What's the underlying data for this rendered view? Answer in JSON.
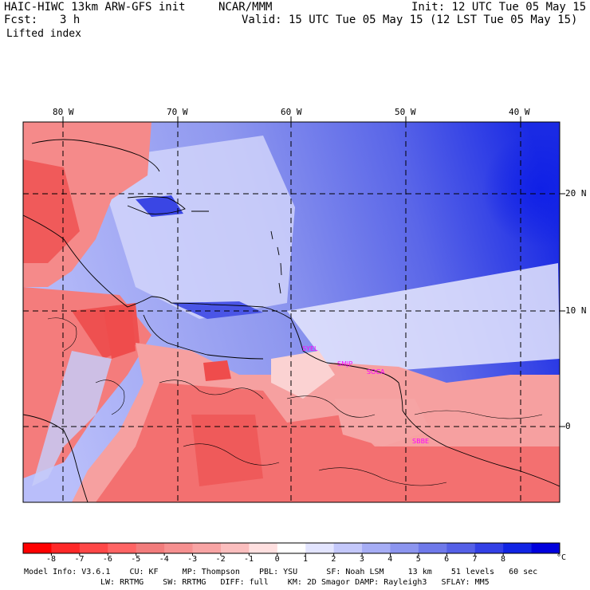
{
  "header": {
    "model": "HAIC-HIWC 13km ARW-GFS init",
    "center": "NCAR/MMM",
    "init": "Init: 12 UTC Tue 05 May 15",
    "fcst_label": "Fcst:",
    "fcst_value": "3 h",
    "valid": "Valid: 15 UTC Tue 05 May 15 (12 LST Tue 05 May 15)",
    "field": "Lifted index"
  },
  "map": {
    "lon_labels": [
      "80 W",
      "70 W",
      "60 W",
      "50 W",
      "40 W"
    ],
    "lat_labels": [
      "20 N",
      "10 N",
      "0"
    ],
    "stations": [
      "SYEL",
      "SMJP",
      "SOCA",
      "SBBE"
    ],
    "colors": {
      "strong_negative": "#ff2020",
      "negative": "#f37b7b",
      "neutral": "#ffffff",
      "positive": "#8c95ef",
      "strong_positive": "#0000ee",
      "station": "#ff00ff"
    }
  },
  "colorbar": {
    "ticks": [
      "-8",
      "-7",
      "-6",
      "-5",
      "-4",
      "-3",
      "-2",
      "-1",
      "0",
      "1",
      "2",
      "3",
      "4",
      "5",
      "6",
      "7",
      "8"
    ],
    "unit": "°C",
    "colors": [
      "#ff0000",
      "#ff2828",
      "#ff4747",
      "#ff6464",
      "#f27c7c",
      "#f69090",
      "#f8a4a4",
      "#fbbebe",
      "#ffe0e0",
      "#ffffff",
      "#e3e5ff",
      "#c4c8fb",
      "#a6adf5",
      "#8c95ef",
      "#6f79ea",
      "#5560e7",
      "#3340e6",
      "#1124e4",
      "#0000dd"
    ]
  },
  "footer": {
    "line1": "Model Info: V3.6.1    CU: KF     MP: Thompson    PBL: YSU      SF: Noah LSM     13 km    51 levels   60 sec",
    "line2": "LW: RRTMG    SW: RRTMG   DIFF: full    KM: 2D Smagor DAMP: Rayleigh3   SFLAY: MM5"
  }
}
